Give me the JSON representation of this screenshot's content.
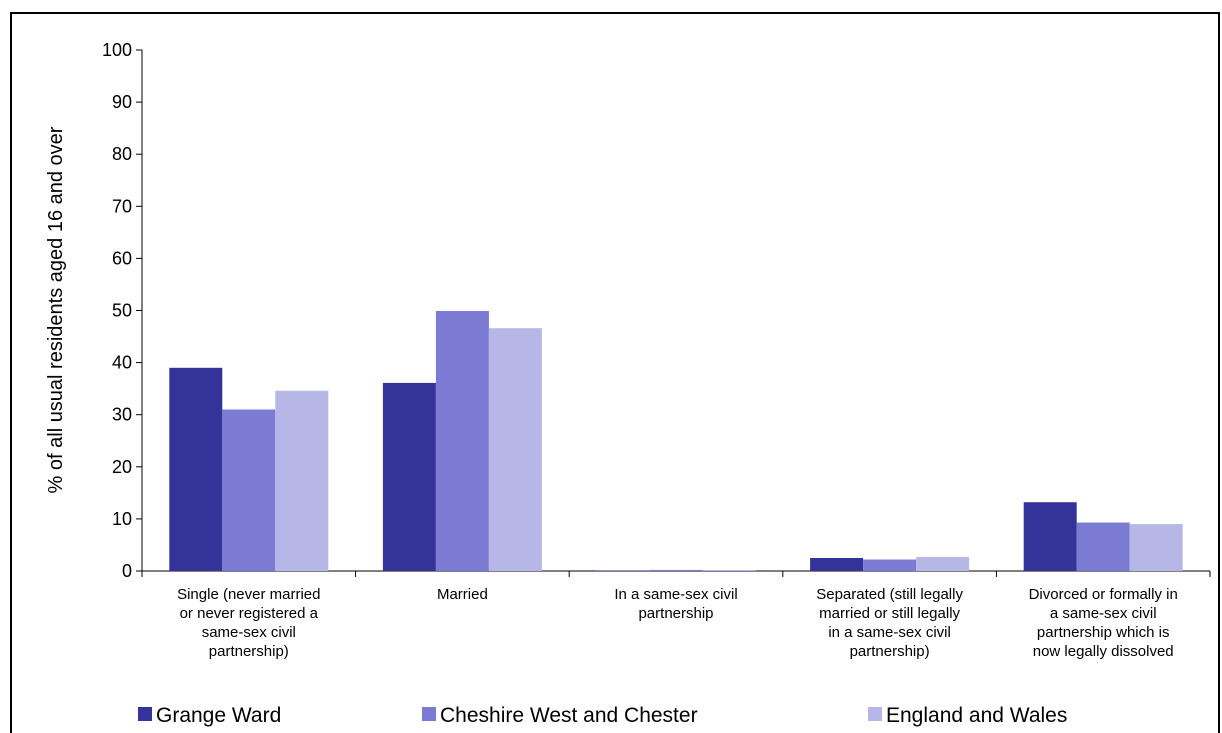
{
  "chart_data": {
    "type": "bar",
    "title": "",
    "xlabel": "",
    "ylabel": "% of all usual residents aged 16 and over",
    "ylim": [
      0,
      100
    ],
    "yticks": [
      0,
      10,
      20,
      30,
      40,
      50,
      60,
      70,
      80,
      90,
      100
    ],
    "grid": false,
    "legend_position": "bottom",
    "categories": [
      [
        "Single (never married",
        "or never registered a",
        "same-sex civil",
        "partnership)"
      ],
      [
        "Married"
      ],
      [
        "In a same-sex civil",
        "partnership"
      ],
      [
        "Separated (still legally",
        "married or still legally",
        "in a same-sex civil",
        "partnership)"
      ],
      [
        "Divorced or formally in",
        "a same-sex civil",
        "partnership which is",
        "now legally dissolved"
      ]
    ],
    "series": [
      {
        "name": "Grange Ward",
        "color": "#333399",
        "values": [
          39.0,
          36.1,
          0.1,
          2.5,
          13.2
        ]
      },
      {
        "name": "Cheshire West and Chester",
        "color": "#7b7bd3",
        "values": [
          31.0,
          49.9,
          0.2,
          2.2,
          9.3
        ]
      },
      {
        "name": "England and Wales",
        "color": "#b7b7e7",
        "values": [
          34.6,
          46.6,
          0.2,
          2.7,
          9.0
        ]
      }
    ]
  }
}
